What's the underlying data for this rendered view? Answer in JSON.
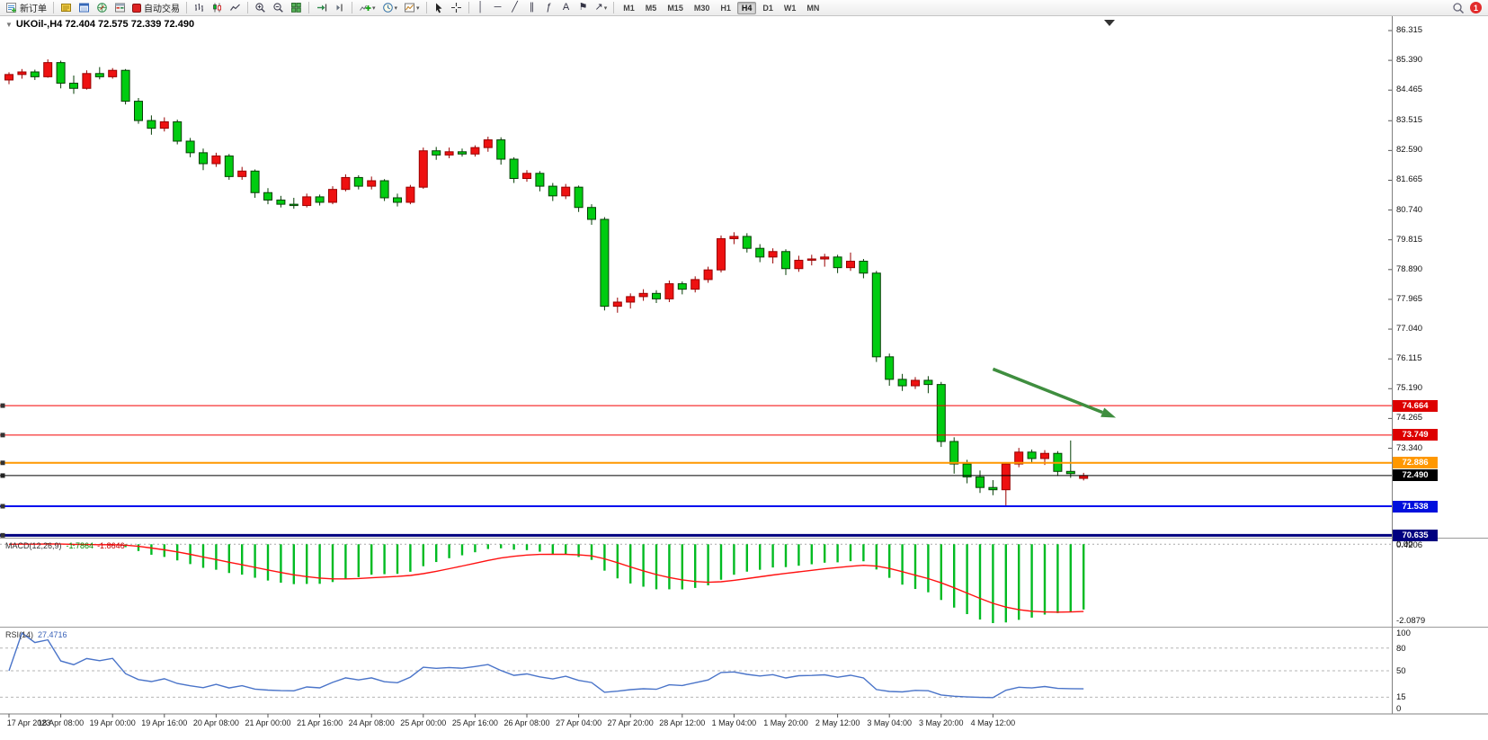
{
  "toolbar": {
    "new_order_label": "新订单",
    "autotrading_label": "自动交易",
    "timeframes": [
      "M1",
      "M5",
      "M15",
      "M30",
      "H1",
      "H4",
      "D1",
      "W1",
      "MN"
    ],
    "active_timeframe": "H4",
    "notification_badge": "1"
  },
  "chart_data": {
    "type": "candlestick",
    "symbol": "UKOil-",
    "timeframe": "H4",
    "title": "UKOil-,H4 72.404 72.575 72.339 72.490",
    "ohlc": {
      "open": "72.404",
      "high": "72.575",
      "low": "72.339",
      "close": "72.490"
    },
    "up_color": "#ee1111",
    "down_color": "#00cc11",
    "y_axis_ticks": [
      "86.315",
      "85.390",
      "84.465",
      "83.515",
      "82.590",
      "81.665",
      "80.740",
      "79.815",
      "78.890",
      "77.965",
      "77.040",
      "76.115",
      "75.190",
      "74.265",
      "73.340"
    ],
    "x_labels": [
      "17 Apr 2023",
      "18 Apr 08:00",
      "19 Apr 00:00",
      "19 Apr 16:00",
      "20 Apr 08:00",
      "21 Apr 00:00",
      "21 Apr 16:00",
      "24 Apr 08:00",
      "25 Apr 00:00",
      "25 Apr 16:00",
      "26 Apr 08:00",
      "27 Apr 04:00",
      "27 Apr 20:00",
      "28 Apr 12:00",
      "1 May 04:00",
      "1 May 20:00",
      "2 May 12:00",
      "3 May 04:00",
      "3 May 20:00",
      "4 May 12:00"
    ],
    "candles": [
      [
        84.78,
        85.02,
        84.65,
        84.95
      ],
      [
        84.95,
        85.12,
        84.82,
        85.03
      ],
      [
        85.03,
        85.1,
        84.78,
        84.88
      ],
      [
        84.88,
        85.42,
        84.85,
        85.32
      ],
      [
        85.32,
        85.38,
        84.52,
        84.68
      ],
      [
        84.68,
        84.92,
        84.35,
        84.52
      ],
      [
        84.52,
        85.08,
        84.48,
        84.98
      ],
      [
        84.98,
        85.18,
        84.8,
        84.88
      ],
      [
        84.88,
        85.15,
        84.82,
        85.08
      ],
      [
        85.08,
        85.12,
        84.02,
        84.12
      ],
      [
        84.12,
        84.22,
        83.42,
        83.52
      ],
      [
        83.52,
        83.68,
        83.08,
        83.28
      ],
      [
        83.28,
        83.62,
        83.18,
        83.48
      ],
      [
        83.48,
        83.55,
        82.78,
        82.88
      ],
      [
        82.88,
        82.98,
        82.38,
        82.52
      ],
      [
        82.52,
        82.65,
        81.98,
        82.18
      ],
      [
        82.18,
        82.52,
        82.08,
        82.42
      ],
      [
        82.42,
        82.48,
        81.68,
        81.78
      ],
      [
        81.78,
        82.08,
        81.68,
        81.95
      ],
      [
        81.95,
        82.0,
        81.12,
        81.28
      ],
      [
        81.28,
        81.42,
        80.92,
        81.05
      ],
      [
        81.05,
        81.18,
        80.82,
        80.92
      ],
      [
        80.92,
        81.12,
        80.78,
        80.88
      ],
      [
        80.88,
        81.25,
        80.82,
        81.15
      ],
      [
        81.15,
        81.22,
        80.88,
        80.98
      ],
      [
        80.98,
        81.48,
        80.92,
        81.38
      ],
      [
        81.38,
        81.85,
        81.32,
        81.75
      ],
      [
        81.75,
        81.82,
        81.38,
        81.48
      ],
      [
        81.48,
        81.78,
        81.38,
        81.65
      ],
      [
        81.65,
        81.7,
        81.02,
        81.12
      ],
      [
        81.12,
        81.25,
        80.85,
        80.98
      ],
      [
        80.98,
        81.52,
        80.92,
        81.45
      ],
      [
        81.45,
        82.68,
        81.4,
        82.58
      ],
      [
        82.58,
        82.7,
        82.3,
        82.45
      ],
      [
        82.45,
        82.68,
        82.35,
        82.55
      ],
      [
        82.55,
        82.65,
        82.4,
        82.48
      ],
      [
        82.48,
        82.75,
        82.4,
        82.68
      ],
      [
        82.68,
        83.02,
        82.55,
        82.92
      ],
      [
        82.92,
        83.0,
        82.15,
        82.32
      ],
      [
        82.32,
        82.38,
        81.58,
        81.72
      ],
      [
        81.72,
        81.98,
        81.62,
        81.88
      ],
      [
        81.88,
        81.95,
        81.32,
        81.48
      ],
      [
        81.48,
        81.58,
        81.02,
        81.18
      ],
      [
        81.18,
        81.55,
        81.08,
        81.45
      ],
      [
        81.45,
        81.5,
        80.68,
        80.82
      ],
      [
        80.82,
        80.92,
        80.28,
        80.45
      ],
      [
        80.45,
        80.52,
        77.62,
        77.75
      ],
      [
        77.75,
        78.02,
        77.55,
        77.88
      ],
      [
        77.88,
        78.15,
        77.68,
        78.05
      ],
      [
        78.05,
        78.28,
        77.92,
        78.15
      ],
      [
        78.15,
        78.25,
        77.85,
        77.98
      ],
      [
        77.98,
        78.55,
        77.88,
        78.45
      ],
      [
        78.45,
        78.52,
        78.12,
        78.28
      ],
      [
        78.28,
        78.68,
        78.18,
        78.58
      ],
      [
        78.58,
        78.98,
        78.48,
        78.88
      ],
      [
        78.88,
        79.95,
        78.8,
        79.85
      ],
      [
        79.85,
        80.05,
        79.68,
        79.92
      ],
      [
        79.92,
        80.02,
        79.42,
        79.55
      ],
      [
        79.55,
        79.68,
        79.12,
        79.28
      ],
      [
        79.28,
        79.55,
        79.08,
        79.45
      ],
      [
        79.45,
        79.52,
        78.72,
        78.92
      ],
      [
        78.92,
        79.32,
        78.82,
        79.18
      ],
      [
        79.18,
        79.35,
        79.02,
        79.22
      ],
      [
        79.22,
        79.38,
        78.98,
        79.28
      ],
      [
        79.28,
        79.35,
        78.78,
        78.95
      ],
      [
        78.95,
        79.42,
        78.85,
        79.15
      ],
      [
        79.15,
        79.22,
        78.62,
        78.78
      ],
      [
        78.78,
        78.85,
        76.02,
        76.18
      ],
      [
        76.18,
        76.28,
        75.28,
        75.48
      ],
      [
        75.48,
        75.65,
        75.12,
        75.28
      ],
      [
        75.28,
        75.55,
        75.18,
        75.45
      ],
      [
        75.45,
        75.58,
        75.05,
        75.32
      ],
      [
        75.32,
        75.4,
        73.38,
        73.55
      ],
      [
        73.55,
        73.68,
        72.55,
        72.85
      ],
      [
        72.85,
        72.98,
        72.25,
        72.45
      ],
      [
        72.45,
        72.65,
        71.95,
        72.12
      ],
      [
        72.12,
        72.35,
        71.88,
        72.05
      ],
      [
        72.05,
        72.9,
        71.52,
        72.85
      ],
      [
        72.85,
        73.35,
        72.75,
        73.22
      ],
      [
        73.22,
        73.3,
        72.88,
        73.02
      ],
      [
        73.02,
        73.28,
        72.82,
        73.18
      ],
      [
        73.18,
        73.25,
        72.48,
        72.62
      ],
      [
        72.62,
        73.58,
        72.42,
        72.55
      ],
      [
        72.404,
        72.575,
        72.339,
        72.49
      ]
    ],
    "levels": [
      {
        "price": "74.664",
        "color": "#f40000",
        "line_width": 1,
        "label_bg": "#dd0000"
      },
      {
        "price": "73.749",
        "color": "#f40000",
        "line_width": 1,
        "label_bg": "#dd0000"
      },
      {
        "price": "72.886",
        "color": "#ff9800",
        "line_width": 2,
        "label_bg": "#ff9800"
      },
      {
        "price": "71.538",
        "color": "#0010ee",
        "line_width": 2,
        "label_bg": "#0010dd"
      },
      {
        "price": "70.635",
        "color": "#000080",
        "line_width": 3,
        "label_bg": "#000080"
      }
    ],
    "current_price": {
      "price": "72.490",
      "color": "#000000",
      "label_bg": "#000000"
    },
    "indicators": [
      {
        "name": "MACD",
        "label": "MACD(12,26,9)",
        "values_text": [
          "-1.7864",
          "-1.8646"
        ],
        "fast": 12,
        "slow": 26,
        "signal": 9,
        "axis_labels": [
          "0.4206",
          "0.00",
          "-2.0879"
        ],
        "histogram_color": "#00bb22",
        "signal_color": "#ff1111"
      },
      {
        "name": "RSI",
        "label": "RSI(14)",
        "value_text": "27.4716",
        "period": 14,
        "axis_labels": [
          "100",
          "80",
          "50",
          "15",
          "0"
        ],
        "line_color": "#4a74c9",
        "level_lines": [
          80,
          50,
          15
        ]
      }
    ],
    "annotation_arrow": {
      "color": "#3f8e3f",
      "from_index": 76,
      "from_price": 75.8,
      "to_index": 85.3,
      "to_price": 74.32
    }
  }
}
